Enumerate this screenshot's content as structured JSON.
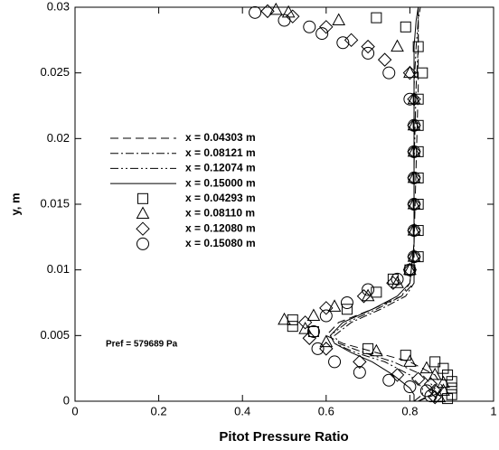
{
  "chart_data": {
    "type": "line",
    "xlabel": "Pitot Pressure Ratio",
    "ylabel": "y, m",
    "annotation": "Pref = 579689 Pa",
    "xlim": [
      0,
      1
    ],
    "xticks": [
      0,
      0.2,
      0.4,
      0.6,
      0.8,
      1
    ],
    "ylim": [
      0,
      0.03
    ],
    "yticks": [
      0,
      0.005,
      0.01,
      0.015,
      0.02,
      0.025,
      0.03
    ],
    "series": [
      {
        "name": "x = 0.04303 m",
        "color": "#000000",
        "style": "dashed",
        "x": [
          0.82,
          0.86,
          0.88,
          0.86,
          0.8,
          0.72,
          0.64,
          0.6,
          0.63,
          0.71,
          0.78,
          0.81,
          0.81,
          0.815,
          0.82,
          0.82,
          0.82,
          0.82
        ],
        "values": [
          0,
          0.0005,
          0.001,
          0.002,
          0.003,
          0.0037,
          0.0044,
          0.005,
          0.006,
          0.007,
          0.008,
          0.009,
          0.012,
          0.018,
          0.024,
          0.027,
          0.029,
          0.03
        ]
      },
      {
        "name": "x = 0.08121 m",
        "color": "#000000",
        "style": "dashdot",
        "x": [
          0.82,
          0.85,
          0.86,
          0.83,
          0.76,
          0.69,
          0.63,
          0.62,
          0.66,
          0.73,
          0.79,
          0.81,
          0.81,
          0.81,
          0.815,
          0.82,
          0.82,
          0.825
        ],
        "values": [
          0,
          0.0005,
          0.001,
          0.002,
          0.003,
          0.0037,
          0.0044,
          0.005,
          0.006,
          0.007,
          0.008,
          0.009,
          0.012,
          0.018,
          0.024,
          0.027,
          0.029,
          0.03
        ]
      },
      {
        "name": "x = 0.12074 m",
        "color": "#000000",
        "style": "dashdotdot",
        "x": [
          0.81,
          0.83,
          0.83,
          0.8,
          0.74,
          0.67,
          0.62,
          0.61,
          0.65,
          0.72,
          0.78,
          0.8,
          0.81,
          0.81,
          0.81,
          0.815,
          0.82,
          0.82
        ],
        "values": [
          0,
          0.0005,
          0.001,
          0.002,
          0.003,
          0.0037,
          0.0044,
          0.005,
          0.006,
          0.007,
          0.008,
          0.009,
          0.012,
          0.018,
          0.024,
          0.027,
          0.029,
          0.03
        ]
      },
      {
        "name": "x = 0.15000 m",
        "color": "#000000",
        "style": "solid",
        "x": [
          0.81,
          0.81,
          0.8,
          0.76,
          0.71,
          0.66,
          0.62,
          0.61,
          0.64,
          0.71,
          0.77,
          0.8,
          0.81,
          0.81,
          0.81,
          0.81,
          0.815,
          0.82
        ],
        "values": [
          0,
          0.0005,
          0.001,
          0.002,
          0.003,
          0.0037,
          0.0044,
          0.005,
          0.006,
          0.007,
          0.008,
          0.009,
          0.012,
          0.018,
          0.024,
          0.027,
          0.029,
          0.03
        ]
      },
      {
        "name": "x = 0.04293 m",
        "color": "#000000",
        "marker": "square",
        "x": [
          0.89,
          0.9,
          0.9,
          0.9,
          0.89,
          0.88,
          0.86,
          0.79,
          0.7,
          0.52,
          0.57,
          0.52,
          0.65,
          0.72,
          0.76,
          0.8,
          0.82,
          0.82,
          0.82,
          0.82,
          0.82,
          0.82,
          0.82,
          0.83,
          0.82,
          0.79,
          0.72
        ],
        "values": [
          0.0002,
          0.0005,
          0.001,
          0.0015,
          0.002,
          0.0025,
          0.003,
          0.0035,
          0.004,
          0.0057,
          0.0053,
          0.0062,
          0.007,
          0.0083,
          0.0093,
          0.01,
          0.011,
          0.013,
          0.015,
          0.017,
          0.019,
          0.021,
          0.023,
          0.025,
          0.027,
          0.0285,
          0.0292
        ]
      },
      {
        "name": "x = 0.08110 m",
        "color": "#000000",
        "marker": "triangle",
        "x": [
          0.87,
          0.88,
          0.88,
          0.86,
          0.84,
          0.8,
          0.72,
          0.6,
          0.55,
          0.5,
          0.57,
          0.62,
          0.7,
          0.77,
          0.8,
          0.81,
          0.81,
          0.81,
          0.81,
          0.81,
          0.81,
          0.81,
          0.8,
          0.77,
          0.63,
          0.51,
          0.48
        ],
        "values": [
          0.0003,
          0.0008,
          0.0014,
          0.002,
          0.0025,
          0.003,
          0.0038,
          0.0045,
          0.0055,
          0.0062,
          0.0065,
          0.0072,
          0.008,
          0.009,
          0.01,
          0.011,
          0.013,
          0.015,
          0.017,
          0.019,
          0.021,
          0.023,
          0.025,
          0.027,
          0.029,
          0.0296,
          0.0298
        ]
      },
      {
        "name": "x = 0.12080 m",
        "color": "#000000",
        "marker": "diamond",
        "x": [
          0.86,
          0.86,
          0.85,
          0.82,
          0.77,
          0.68,
          0.6,
          0.56,
          0.55,
          0.6,
          0.69,
          0.76,
          0.8,
          0.81,
          0.81,
          0.81,
          0.81,
          0.81,
          0.81,
          0.81,
          0.8,
          0.74,
          0.7,
          0.66,
          0.6,
          0.52,
          0.46
        ],
        "values": [
          0.0003,
          0.0008,
          0.0013,
          0.0017,
          0.002,
          0.003,
          0.004,
          0.0048,
          0.006,
          0.0071,
          0.008,
          0.009,
          0.01,
          0.011,
          0.013,
          0.015,
          0.017,
          0.019,
          0.021,
          0.023,
          0.025,
          0.026,
          0.027,
          0.0275,
          0.0285,
          0.0293,
          0.0297
        ]
      },
      {
        "name": "x = 0.15080 m",
        "color": "#000000",
        "marker": "circle",
        "x": [
          0.85,
          0.84,
          0.8,
          0.75,
          0.68,
          0.62,
          0.58,
          0.57,
          0.6,
          0.65,
          0.7,
          0.77,
          0.8,
          0.81,
          0.81,
          0.81,
          0.81,
          0.81,
          0.81,
          0.8,
          0.75,
          0.7,
          0.64,
          0.59,
          0.56,
          0.5,
          0.43
        ],
        "values": [
          0.0004,
          0.0008,
          0.0011,
          0.0016,
          0.0022,
          0.003,
          0.004,
          0.0053,
          0.0065,
          0.0075,
          0.0085,
          0.0093,
          0.01,
          0.011,
          0.013,
          0.015,
          0.017,
          0.019,
          0.021,
          0.023,
          0.025,
          0.0265,
          0.0273,
          0.028,
          0.0285,
          0.029,
          0.0296
        ]
      }
    ]
  }
}
